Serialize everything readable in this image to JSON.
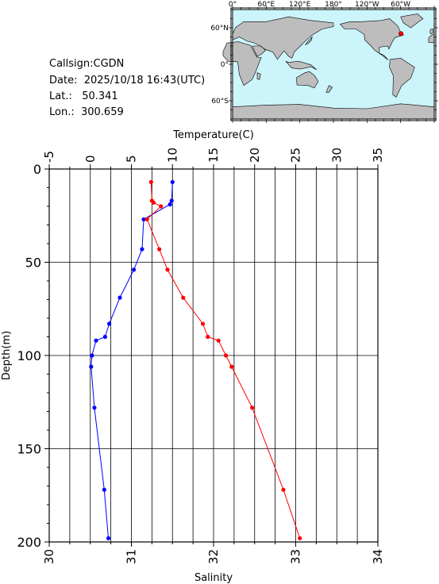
{
  "info": {
    "callsign": "Callsign:CGDN",
    "date": "Date:  2025/10/18 16:43(UTC)",
    "lat": "Lat.:   50.341",
    "lon": "Lon.:  300.659"
  },
  "map": {
    "top_ticks": [
      "0°",
      "60°E",
      "120°E",
      "180°",
      "120°W",
      "60°W"
    ],
    "left_ticks": [
      "60°N",
      "0°",
      "60°S"
    ],
    "ocean_color": "#ccf5fb",
    "land_color": "#bdbdbd",
    "marker_color": "#ff0000"
  },
  "chart_data": {
    "type": "line",
    "ylabel": "Depth(m)",
    "ylim": [
      200,
      0
    ],
    "yticks": [
      0,
      50,
      100,
      150,
      200
    ],
    "top_axis": {
      "label": "Temperature(C)",
      "lim": [
        -5,
        35
      ],
      "ticks": [
        -5,
        0,
        5,
        10,
        15,
        20,
        25,
        30,
        35
      ],
      "minor_step": 2.5
    },
    "bottom_axis": {
      "label": "Salinity",
      "lim": [
        30,
        34
      ],
      "ticks": [
        30,
        31,
        32,
        33,
        34
      ],
      "minor_step": 0.25
    },
    "series": [
      {
        "color": "#0000ff",
        "axis": "top",
        "x": [
          10.0,
          9.9,
          9.7,
          6.5,
          6.3,
          5.3,
          3.6,
          2.3,
          1.8,
          0.7,
          0.2,
          0.1,
          0.5,
          1.7,
          2.2
        ],
        "depth": [
          7,
          17,
          19,
          27,
          43,
          54,
          69,
          83,
          90,
          92,
          100,
          106,
          128,
          172,
          198
        ]
      },
      {
        "color": "#ff0000",
        "axis": "bottom",
        "x": [
          31.24,
          31.25,
          31.27,
          31.36,
          31.19,
          31.34,
          31.44,
          31.63,
          31.87,
          31.93,
          32.06,
          32.15,
          32.22,
          32.47,
          32.85,
          33.05
        ],
        "depth": [
          7,
          17,
          18,
          20,
          27,
          43,
          54,
          69,
          83,
          90,
          92,
          100,
          106,
          128,
          172,
          198
        ]
      }
    ],
    "grid": true
  }
}
